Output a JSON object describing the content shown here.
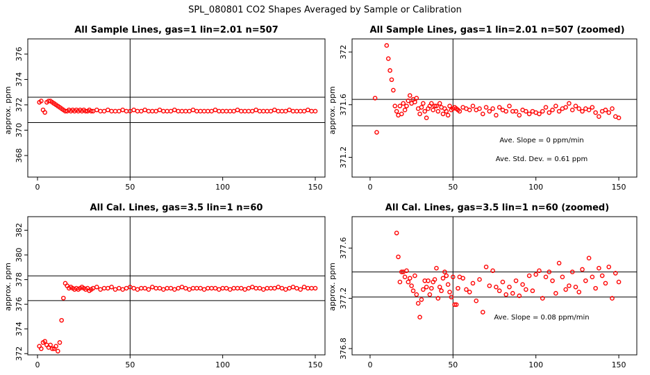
{
  "figure_title": "SPL_080801  CO2 Shapes Averaged by Sample or Calibration",
  "colors": {
    "points": "#ff0000",
    "lines": "#000000",
    "background": "#ffffff"
  },
  "chart_data": [
    {
      "type": "scatter",
      "title": "All Sample Lines, gas=1 lin=2.01 n=507",
      "ylabel": "approx. ppm",
      "xlim": [
        0,
        150
      ],
      "ylim": [
        366.3,
        377.2
      ],
      "xticks": [
        0,
        50,
        100,
        150
      ],
      "yticks": [
        368,
        370,
        372,
        374,
        376
      ],
      "hlines": [
        372.6,
        370.6
      ],
      "vline": 50,
      "annotations": [],
      "series": [
        {
          "x": [
            1,
            2,
            3,
            4,
            5,
            6,
            7,
            8,
            9,
            10,
            11,
            12,
            13,
            14,
            15,
            16,
            17,
            18,
            19,
            20,
            21,
            22,
            23,
            24,
            25,
            26,
            27,
            28,
            29,
            30,
            32,
            34,
            36,
            38,
            40,
            42,
            44,
            46,
            48,
            50,
            52,
            54,
            56,
            58,
            60,
            62,
            64,
            66,
            68,
            70,
            72,
            74,
            76,
            78,
            80,
            82,
            84,
            86,
            88,
            90,
            92,
            94,
            96,
            98,
            100,
            102,
            104,
            106,
            108,
            110,
            112,
            114,
            116,
            118,
            120,
            122,
            124,
            126,
            128,
            130,
            132,
            134,
            136,
            138,
            140,
            142,
            144,
            146,
            148,
            150
          ],
          "y": [
            372.2,
            372.3,
            371.6,
            371.4,
            372.2,
            372.3,
            372.3,
            372.2,
            372.1,
            372.0,
            371.9,
            371.8,
            371.7,
            371.6,
            371.5,
            371.5,
            371.6,
            371.5,
            371.6,
            371.5,
            371.6,
            371.5,
            371.6,
            371.5,
            371.6,
            371.5,
            371.5,
            371.6,
            371.5,
            371.5,
            371.6,
            371.5,
            371.5,
            371.6,
            371.5,
            371.5,
            371.5,
            371.6,
            371.5,
            371.5,
            371.6,
            371.5,
            371.5,
            371.6,
            371.5,
            371.5,
            371.5,
            371.6,
            371.5,
            371.5,
            371.5,
            371.6,
            371.5,
            371.5,
            371.5,
            371.5,
            371.6,
            371.5,
            371.5,
            371.5,
            371.5,
            371.5,
            371.6,
            371.5,
            371.5,
            371.5,
            371.5,
            371.5,
            371.6,
            371.5,
            371.5,
            371.5,
            371.5,
            371.6,
            371.5,
            371.5,
            371.5,
            371.5,
            371.6,
            371.5,
            371.5,
            371.5,
            371.6,
            371.5,
            371.5,
            371.5,
            371.5,
            371.6,
            371.5,
            371.5
          ]
        }
      ]
    },
    {
      "type": "scatter",
      "title": "All Sample Lines, gas=1 lin=2.01 n=507 (zoomed)",
      "ylabel": "approx. ppm",
      "xlim": [
        -5,
        155
      ],
      "ylim": [
        371.05,
        372.1
      ],
      "xticks": [
        0,
        50,
        100,
        150
      ],
      "yticks": [
        371.2,
        371.6,
        372.0
      ],
      "hlines": [
        371.64,
        371.44
      ],
      "vline": 50,
      "annotations": [
        "Ave. Slope =  0  ppm/min",
        "Ave. Std. Dev. =  0.61  ppm"
      ],
      "series": [
        {
          "x": [
            3,
            4,
            9,
            10,
            11,
            12,
            13,
            14,
            15,
            16,
            17,
            18,
            19,
            20,
            21,
            22,
            23,
            24,
            25,
            26,
            27,
            28,
            29,
            30,
            31,
            32,
            33,
            34,
            35,
            36,
            37,
            38,
            39,
            40,
            41,
            42,
            43,
            44,
            45,
            46,
            47,
            48,
            49,
            50,
            51,
            52,
            53,
            54,
            56,
            58,
            60,
            62,
            64,
            66,
            68,
            70,
            72,
            74,
            76,
            78,
            80,
            82,
            84,
            86,
            88,
            90,
            92,
            94,
            96,
            98,
            100,
            102,
            104,
            106,
            108,
            110,
            112,
            114,
            116,
            118,
            120,
            122,
            124,
            126,
            128,
            130,
            132,
            134,
            136,
            138,
            140,
            142,
            144,
            146,
            148,
            150
          ],
          "y": [
            371.65,
            371.39,
            372.12,
            372.05,
            371.95,
            371.86,
            371.79,
            371.71,
            371.59,
            371.55,
            371.52,
            371.59,
            371.53,
            371.61,
            371.56,
            371.59,
            371.63,
            371.67,
            371.61,
            371.64,
            371.62,
            371.65,
            371.57,
            371.53,
            371.58,
            371.61,
            371.55,
            371.5,
            371.57,
            371.59,
            371.61,
            371.56,
            371.59,
            371.59,
            371.55,
            371.61,
            371.58,
            371.53,
            371.57,
            371.55,
            371.52,
            371.59,
            371.56,
            371.57,
            371.58,
            371.57,
            371.56,
            371.55,
            371.58,
            371.57,
            371.56,
            371.59,
            371.56,
            371.57,
            371.53,
            371.58,
            371.55,
            371.57,
            371.52,
            371.58,
            371.56,
            371.55,
            371.59,
            371.55,
            371.55,
            371.52,
            371.56,
            371.55,
            371.53,
            371.55,
            371.54,
            371.53,
            371.55,
            371.58,
            371.54,
            371.56,
            371.59,
            371.55,
            371.57,
            371.58,
            371.61,
            371.56,
            371.59,
            371.57,
            371.55,
            371.57,
            371.56,
            371.58,
            371.54,
            371.51,
            371.55,
            371.56,
            371.54,
            371.57,
            371.51,
            371.5
          ]
        }
      ]
    },
    {
      "type": "scatter",
      "title": "All Cal. Lines, gas=3.5 lin=1 n=60",
      "ylabel": "approx. ppm",
      "xlim": [
        0,
        150
      ],
      "ylim": [
        371.9,
        383.1
      ],
      "xticks": [
        0,
        50,
        100,
        150
      ],
      "yticks": [
        372,
        374,
        376,
        378,
        380,
        382
      ],
      "hlines": [
        378.3,
        376.3
      ],
      "vline": 50,
      "annotations": [],
      "series": [
        {
          "x": [
            1,
            2,
            3,
            4,
            5,
            6,
            7,
            8,
            9,
            10,
            11,
            12,
            13,
            14,
            15,
            16,
            17,
            18,
            19,
            20,
            21,
            22,
            23,
            24,
            25,
            26,
            27,
            28,
            29,
            30,
            32,
            34,
            36,
            38,
            40,
            42,
            44,
            46,
            48,
            50,
            52,
            54,
            56,
            58,
            60,
            62,
            64,
            66,
            68,
            70,
            72,
            74,
            76,
            78,
            80,
            82,
            84,
            86,
            88,
            90,
            92,
            94,
            96,
            98,
            100,
            102,
            104,
            106,
            108,
            110,
            112,
            114,
            116,
            118,
            120,
            122,
            124,
            126,
            128,
            130,
            132,
            134,
            136,
            138,
            140,
            142,
            144,
            146,
            148,
            150
          ],
          "y": [
            372.6,
            372.4,
            372.9,
            373.0,
            372.7,
            372.5,
            372.7,
            372.4,
            372.4,
            372.6,
            372.2,
            372.9,
            374.7,
            376.5,
            377.7,
            377.5,
            377.3,
            377.4,
            377.3,
            377.2,
            377.3,
            377.2,
            377.3,
            377.4,
            377.3,
            377.2,
            377.3,
            377.1,
            377.2,
            377.3,
            377.4,
            377.2,
            377.3,
            377.3,
            377.4,
            377.2,
            377.3,
            377.2,
            377.3,
            377.4,
            377.3,
            377.2,
            377.3,
            377.3,
            377.2,
            377.4,
            377.3,
            377.3,
            377.2,
            377.3,
            377.3,
            377.2,
            377.3,
            377.4,
            377.3,
            377.2,
            377.3,
            377.3,
            377.3,
            377.2,
            377.3,
            377.3,
            377.3,
            377.2,
            377.3,
            377.3,
            377.2,
            377.3,
            377.3,
            377.3,
            377.2,
            377.3,
            377.4,
            377.3,
            377.3,
            377.2,
            377.3,
            377.3,
            377.3,
            377.4,
            377.3,
            377.2,
            377.3,
            377.4,
            377.3,
            377.2,
            377.4,
            377.3,
            377.3,
            377.3
          ]
        }
      ]
    },
    {
      "type": "scatter",
      "title": "All Cal. Lines, gas=3.5 lin=1 n=60 (zoomed)",
      "ylabel": "approx. ppm",
      "xlim": [
        -5,
        155
      ],
      "ylim": [
        376.75,
        377.85
      ],
      "xticks": [
        0,
        50,
        100,
        150
      ],
      "yticks": [
        376.8,
        377.2,
        377.6
      ],
      "hlines": [
        377.41,
        377.21
      ],
      "vline": 50,
      "annotations": [
        "Ave. Slope =  0.08  ppm/min"
      ],
      "series": [
        {
          "x": [
            16,
            17,
            18,
            19,
            20,
            21,
            22,
            23,
            24,
            25,
            26,
            27,
            28,
            29,
            30,
            31,
            32,
            33,
            34,
            35,
            36,
            37,
            38,
            39,
            40,
            41,
            42,
            43,
            44,
            45,
            46,
            47,
            48,
            49,
            50,
            51,
            52,
            53,
            54,
            56,
            58,
            60,
            62,
            64,
            66,
            68,
            70,
            72,
            74,
            76,
            78,
            80,
            82,
            84,
            86,
            88,
            90,
            92,
            94,
            96,
            98,
            100,
            102,
            104,
            106,
            108,
            110,
            112,
            114,
            116,
            118,
            120,
            122,
            124,
            126,
            128,
            130,
            132,
            134,
            136,
            138,
            140,
            142,
            144,
            146,
            148,
            150
          ],
          "y": [
            377.72,
            377.53,
            377.33,
            377.41,
            377.41,
            377.37,
            377.42,
            377.33,
            377.36,
            377.3,
            377.26,
            377.38,
            377.23,
            377.16,
            377.05,
            377.19,
            377.27,
            377.34,
            377.29,
            377.34,
            377.23,
            377.28,
            377.33,
            377.35,
            377.44,
            377.2,
            377.29,
            377.26,
            377.36,
            377.41,
            377.38,
            377.31,
            377.25,
            377.21,
            377.37,
            377.15,
            377.15,
            377.28,
            377.37,
            377.36,
            377.27,
            377.25,
            377.32,
            377.18,
            377.35,
            377.09,
            377.45,
            377.3,
            377.42,
            377.29,
            377.26,
            377.33,
            377.23,
            377.29,
            377.24,
            377.34,
            377.22,
            377.31,
            377.27,
            377.38,
            377.26,
            377.39,
            377.42,
            377.2,
            377.37,
            377.41,
            377.34,
            377.24,
            377.48,
            377.37,
            377.27,
            377.3,
            377.41,
            377.29,
            377.25,
            377.43,
            377.34,
            377.52,
            377.37,
            377.28,
            377.44,
            377.38,
            377.32,
            377.45,
            377.2,
            377.4,
            377.33
          ]
        }
      ]
    }
  ]
}
